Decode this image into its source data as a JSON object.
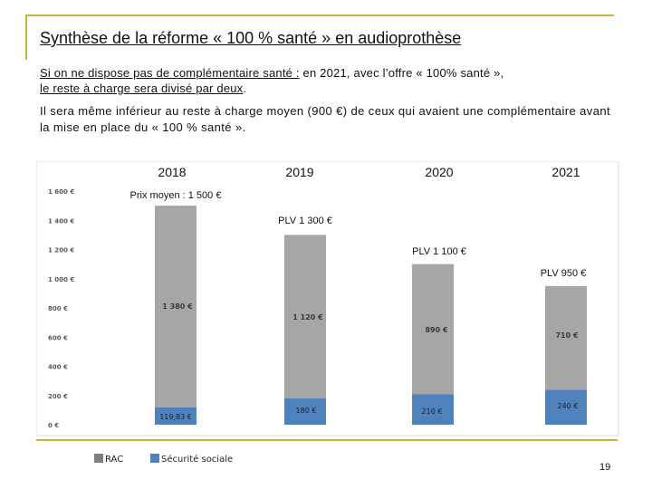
{
  "slide": {
    "title": "Synthèse de la réforme « 100 % santé » en audioprothèse",
    "para1_underlined": "Si on ne dispose pas de complémentaire santé :",
    "para1_rest": "  en 2021, avec l’offre « 100% santé »,",
    "para1_line2": "le reste à charge sera divisé par deux",
    "para1_end": ".",
    "para2": "Il sera même inférieur au reste à charge moyen (900 €) de ceux qui avaient une complémentaire avant la mise en place du « 100 % santé ».",
    "page_number": "19"
  },
  "chart_data": {
    "type": "bar",
    "stacked": true,
    "categories": [
      "2018",
      "2019",
      "2020",
      "2021"
    ],
    "series": [
      {
        "name": "Sécurité sociale",
        "color": "#4f81bd",
        "values": [
          119.83,
          180,
          210,
          240
        ],
        "labels": [
          "119,83 €",
          "180 €",
          "210 €",
          "240 €"
        ]
      },
      {
        "name": "RAC",
        "color": "#a6a6a6",
        "values": [
          1380,
          1120,
          890,
          710
        ],
        "labels": [
          "1 380 €",
          "1 120 €",
          "890 €",
          "710 €"
        ]
      }
    ],
    "totals": [
      "Prix moyen : 1 500 €",
      "PLV 1 300 €",
      "PLV 1 100 €",
      "PLV 950 €"
    ],
    "ylim": [
      0,
      1600
    ],
    "yticks": [
      0,
      200,
      400,
      600,
      800,
      1000,
      1200,
      1400,
      1600
    ],
    "ytick_labels": [
      "0 €",
      "200 €",
      "400 €",
      "600 €",
      "800 €",
      "1 000 €",
      "1 200 €",
      "1 400 €",
      "1 600 €"
    ],
    "legend": [
      {
        "label": "RAC",
        "color": "#7f7f7f"
      },
      {
        "label": "Sécurité sociale",
        "color": "#4f81bd"
      }
    ]
  }
}
